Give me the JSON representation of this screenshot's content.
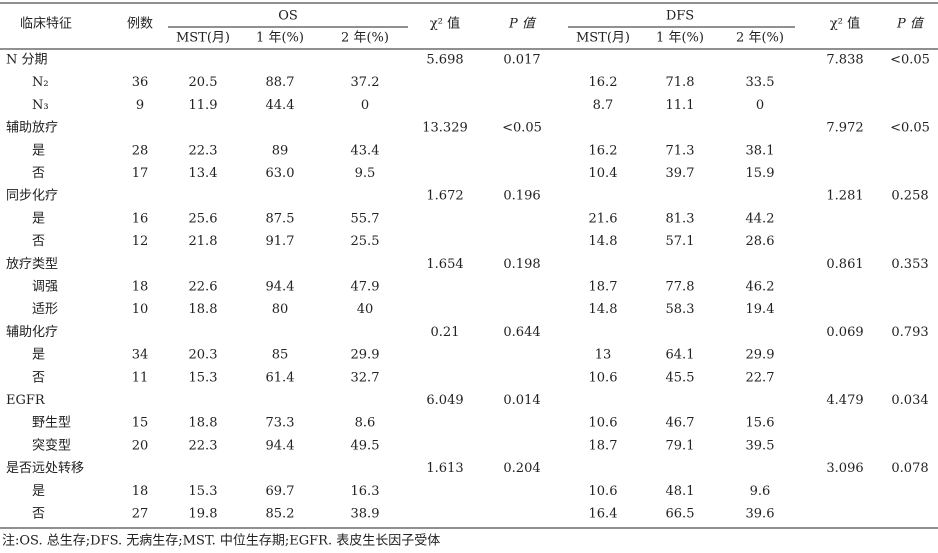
{
  "table": {
    "header": {
      "feature": "临床特征",
      "count": "例数",
      "os": "OS",
      "dfs": "DFS",
      "chi_os": "χ² 值",
      "p_os": "P 值",
      "chi_dfs": "χ² 值",
      "p_dfs": "P 值",
      "sub": [
        "MST(月)",
        "1 年(%)",
        "2 年(%)",
        "MST(月)",
        "1 年(%)",
        "2 年(%)"
      ]
    },
    "rows": [
      [
        "N 分期",
        null,
        null,
        null,
        null,
        "5.698",
        "0.017",
        null,
        null,
        null,
        "7.838",
        "<0.05"
      ],
      [
        "N₂",
        "36",
        "20.5",
        "88.7",
        "37.2",
        null,
        null,
        "16.2",
        "71.8",
        "33.5",
        null,
        null
      ],
      [
        "N₃",
        "9",
        "11.9",
        "44.4",
        "0",
        null,
        null,
        "8.7",
        "11.1",
        "0",
        null,
        null
      ],
      [
        "辅助放疗",
        null,
        null,
        null,
        null,
        "13.329",
        "<0.05",
        null,
        null,
        null,
        "7.972",
        "<0.05"
      ],
      [
        "是",
        "28",
        "22.3",
        "89",
        "43.4",
        null,
        null,
        "16.2",
        "71.3",
        "38.1",
        null,
        null
      ],
      [
        "否",
        "17",
        "13.4",
        "63.0",
        "9.5",
        null,
        null,
        "10.4",
        "39.7",
        "15.9",
        null,
        null
      ],
      [
        "同步化疗",
        null,
        null,
        null,
        null,
        "1.672",
        "0.196",
        null,
        null,
        null,
        "1.281",
        "0.258"
      ],
      [
        "是",
        "16",
        "25.6",
        "87.5",
        "55.7",
        null,
        null,
        "21.6",
        "81.3",
        "44.2",
        null,
        null
      ],
      [
        "否",
        "12",
        "21.8",
        "91.7",
        "25.5",
        null,
        null,
        "14.8",
        "57.1",
        "28.6",
        null,
        null
      ],
      [
        "放疗类型",
        null,
        null,
        null,
        null,
        "1.654",
        "0.198",
        null,
        null,
        null,
        "0.861",
        "0.353"
      ],
      [
        "调强",
        "18",
        "22.6",
        "94.4",
        "47.9",
        null,
        null,
        "18.7",
        "77.8",
        "46.2",
        null,
        null
      ],
      [
        "适形",
        "10",
        "18.8",
        "80",
        "40",
        null,
        null,
        "14.8",
        "58.3",
        "19.4",
        null,
        null
      ],
      [
        "辅助化疗",
        null,
        null,
        null,
        null,
        "0.21",
        "0.644",
        null,
        null,
        null,
        "0.069",
        "0.793"
      ],
      [
        "是",
        "34",
        "20.3",
        "85",
        "29.9",
        null,
        null,
        "13",
        "64.1",
        "29.9",
        null,
        null
      ],
      [
        "否",
        "11",
        "15.3",
        "61.4",
        "32.7",
        null,
        null,
        "10.6",
        "45.5",
        "22.7",
        null,
        null
      ],
      [
        "EGFR",
        null,
        null,
        null,
        null,
        "6.049",
        "0.014",
        null,
        null,
        null,
        "4.479",
        "0.034"
      ],
      [
        "野生型",
        "15",
        "18.8",
        "73.3",
        "8.6",
        null,
        null,
        "10.6",
        "46.7",
        "15.6",
        null,
        null
      ],
      [
        "突变型",
        "20",
        "22.3",
        "94.4",
        "49.5",
        null,
        null,
        "18.7",
        "79.1",
        "39.5",
        null,
        null
      ],
      [
        "是否远处转移",
        null,
        null,
        null,
        null,
        "1.613",
        "0.204",
        null,
        null,
        null,
        "3.096",
        "0.078"
      ],
      [
        "是",
        "18",
        "15.3",
        "69.7",
        "16.3",
        null,
        null,
        "10.6",
        "48.1",
        "9.6",
        null,
        null
      ],
      [
        "否",
        "27",
        "19.8",
        "85.2",
        "38.9",
        null,
        null,
        "16.4",
        "66.5",
        "39.6",
        null,
        null
      ]
    ],
    "note": "注:OS. 总生存;DFS. 无病生存;MST. 中位生存期;EGFR. 表皮生长因子受体"
  }
}
